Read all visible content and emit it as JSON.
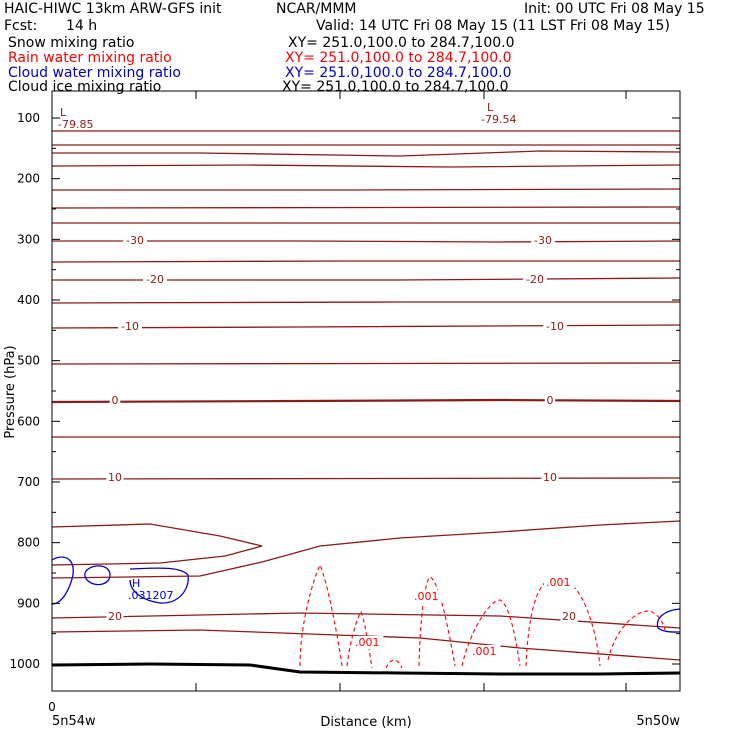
{
  "header": {
    "model": "HAIC-HIWC 13km ARW-GFS init",
    "org": "NCAR/MMM",
    "init": "Init: 00 UTC Fri 08 May 15",
    "fcst_label": "Fcst:",
    "fcst_value": "14 h",
    "valid": "Valid: 14 UTC Fri 08 May 15 (11 LST Fri 08 May 15)"
  },
  "fields": [
    {
      "name": "Snow mixing ratio",
      "xy": "XY= 251.0,100.0 to 284.7,100.0",
      "color": "#000000"
    },
    {
      "name": "Rain water mixing ratio",
      "xy": "XY= 251.0,100.0 to 284.7,100.0",
      "color": "#ff0000"
    },
    {
      "name": "Cloud water mixing ratio",
      "xy": "XY= 251.0,100.0 to 284.7,100.0",
      "color": "#0000cc"
    },
    {
      "name": "Cloud ice mixing ratio",
      "xy": "XY= 251.0,100.0 to 284.7,100.0",
      "color": "#000000"
    }
  ],
  "colors": {
    "temperature": "#8b1a1a",
    "rain": "#ff0000",
    "cloud_water": "#0000cc",
    "terrain": "#000000"
  },
  "chart_data": {
    "type": "line",
    "ylabel": "Pressure (hPa)",
    "xlabel": "Distance (km)",
    "ylim": [
      1050,
      80
    ],
    "y_ticks": [
      100,
      200,
      300,
      400,
      500,
      600,
      700,
      800,
      900,
      1000
    ],
    "x_start_label": "0",
    "x_left_label": "5n54w",
    "x_right_label": "5n50w",
    "isotherm_labels": [
      {
        "text": "-30",
        "pressure": 302
      },
      {
        "text": "-20",
        "pressure": 362
      },
      {
        "text": "-10",
        "pressure": 436
      },
      {
        "text": "0",
        "pressure": 540
      },
      {
        "text": "10",
        "pressure": 657
      },
      {
        "text": "20",
        "pressure": 895
      }
    ],
    "extrema": [
      {
        "marker": "L",
        "value": "-79.85",
        "pressure": 100
      },
      {
        "marker": "L",
        "value": "-79.54",
        "pressure": 100
      },
      {
        "marker": "H",
        "value": ".031207",
        "pressure": 886
      }
    ],
    "rain_labels": [
      ".001",
      ".001",
      ".001",
      ".001"
    ]
  }
}
